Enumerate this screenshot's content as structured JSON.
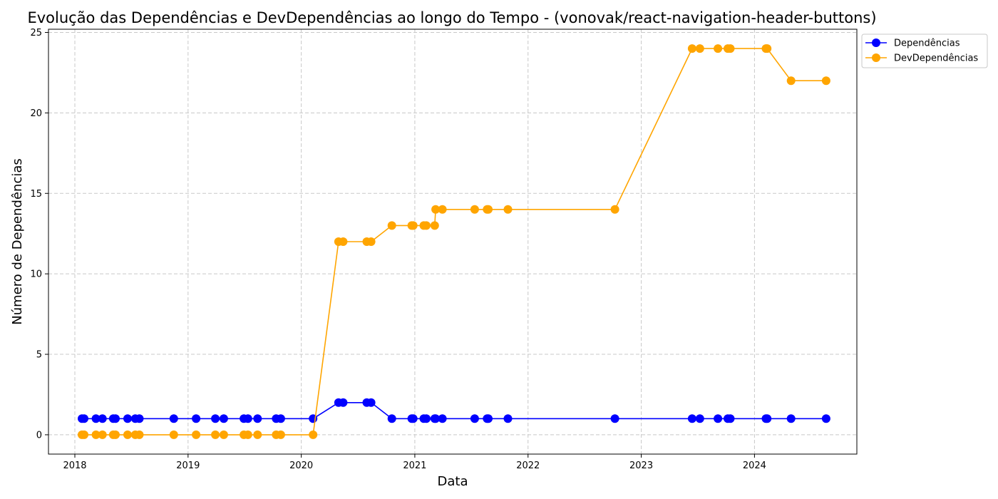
{
  "chart_data": {
    "type": "line",
    "title": "Evolução das Dependências e DevDependências ao longo do Tempo - (vonovak/react-navigation-header-buttons)",
    "xlabel": "Data",
    "ylabel": "Número de Dependências",
    "x_ticks": [
      "2018",
      "2019",
      "2020",
      "2021",
      "2022",
      "2023",
      "2024"
    ],
    "y_ticks": [
      "0",
      "5",
      "10",
      "15",
      "20",
      "25"
    ],
    "xlim": [
      "2017-10-08",
      "2024-11-26"
    ],
    "ylim": [
      -1.2,
      25.2
    ],
    "grid": true,
    "legend_position": "outside-top-right",
    "series": [
      {
        "name": "Dependências",
        "color": "#0000ff",
        "points": [
          [
            "2018-01-24",
            1
          ],
          [
            "2018-01-31",
            1
          ],
          [
            "2018-03-10",
            1
          ],
          [
            "2018-03-31",
            1
          ],
          [
            "2018-05-05",
            1
          ],
          [
            "2018-05-12",
            1
          ],
          [
            "2018-06-20",
            1
          ],
          [
            "2018-07-15",
            1
          ],
          [
            "2018-07-28",
            1
          ],
          [
            "2018-11-16",
            1
          ],
          [
            "2019-01-27",
            1
          ],
          [
            "2019-03-30",
            1
          ],
          [
            "2019-04-26",
            1
          ],
          [
            "2019-06-30",
            1
          ],
          [
            "2019-07-13",
            1
          ],
          [
            "2019-08-13",
            1
          ],
          [
            "2019-10-12",
            1
          ],
          [
            "2019-10-27",
            1
          ],
          [
            "2020-02-08",
            1
          ],
          [
            "2020-04-30",
            2
          ],
          [
            "2020-05-15",
            2
          ],
          [
            "2020-07-30",
            2
          ],
          [
            "2020-08-13",
            2
          ],
          [
            "2020-10-19",
            1
          ],
          [
            "2020-12-22",
            1
          ],
          [
            "2020-12-27",
            1
          ],
          [
            "2021-01-30",
            1
          ],
          [
            "2021-02-07",
            1
          ],
          [
            "2021-03-06",
            1
          ],
          [
            "2021-03-09",
            1
          ],
          [
            "2021-03-31",
            1
          ],
          [
            "2021-07-13",
            1
          ],
          [
            "2021-08-22",
            1
          ],
          [
            "2021-08-26",
            1
          ],
          [
            "2021-10-28",
            1
          ],
          [
            "2022-10-08",
            1
          ],
          [
            "2023-06-14",
            1
          ],
          [
            "2023-07-09",
            1
          ],
          [
            "2023-09-05",
            1
          ],
          [
            "2023-10-07",
            1
          ],
          [
            "2023-10-15",
            1
          ],
          [
            "2024-02-07",
            1
          ],
          [
            "2024-02-11",
            1
          ],
          [
            "2024-04-28",
            1
          ],
          [
            "2024-08-19",
            1
          ]
        ]
      },
      {
        "name": "DevDependências",
        "color": "#ffa500",
        "points": [
          [
            "2018-01-24",
            0
          ],
          [
            "2018-01-31",
            0
          ],
          [
            "2018-03-10",
            0
          ],
          [
            "2018-03-31",
            0
          ],
          [
            "2018-05-05",
            0
          ],
          [
            "2018-05-12",
            0
          ],
          [
            "2018-06-20",
            0
          ],
          [
            "2018-07-15",
            0
          ],
          [
            "2018-07-28",
            0
          ],
          [
            "2018-11-16",
            0
          ],
          [
            "2019-01-27",
            0
          ],
          [
            "2019-03-30",
            0
          ],
          [
            "2019-04-26",
            0
          ],
          [
            "2019-06-30",
            0
          ],
          [
            "2019-07-13",
            0
          ],
          [
            "2019-08-13",
            0
          ],
          [
            "2019-10-12",
            0
          ],
          [
            "2019-10-27",
            0
          ],
          [
            "2020-02-08",
            0
          ],
          [
            "2020-04-30",
            12
          ],
          [
            "2020-05-15",
            12
          ],
          [
            "2020-07-30",
            12
          ],
          [
            "2020-08-13",
            12
          ],
          [
            "2020-10-19",
            13
          ],
          [
            "2020-12-22",
            13
          ],
          [
            "2020-12-27",
            13
          ],
          [
            "2021-01-30",
            13
          ],
          [
            "2021-02-07",
            13
          ],
          [
            "2021-03-06",
            13
          ],
          [
            "2021-03-09",
            14
          ],
          [
            "2021-03-31",
            14
          ],
          [
            "2021-07-13",
            14
          ],
          [
            "2021-08-22",
            14
          ],
          [
            "2021-08-26",
            14
          ],
          [
            "2021-10-28",
            14
          ],
          [
            "2022-10-08",
            14
          ],
          [
            "2023-06-14",
            24
          ],
          [
            "2023-07-09",
            24
          ],
          [
            "2023-09-05",
            24
          ],
          [
            "2023-10-07",
            24
          ],
          [
            "2023-10-15",
            24
          ],
          [
            "2024-02-07",
            24
          ],
          [
            "2024-02-11",
            24
          ],
          [
            "2024-04-28",
            22
          ],
          [
            "2024-08-19",
            22
          ]
        ]
      }
    ]
  }
}
